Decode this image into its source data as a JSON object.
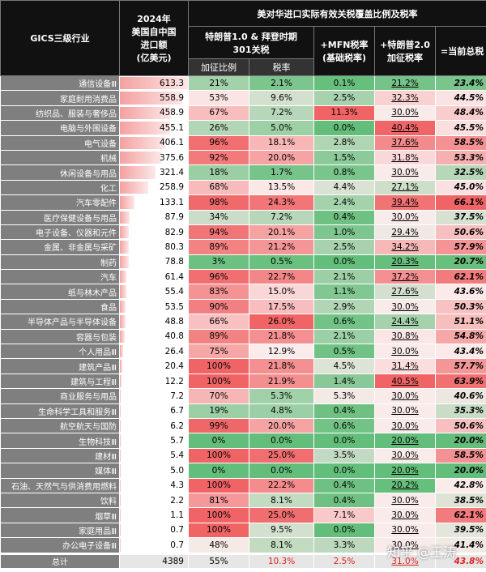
{
  "header": {
    "industry": "GICS三级行业",
    "imports": "2024年\n美国自中国\n进口额\n(亿美元)",
    "group": "美对华进口实际有效关税覆盖比例及税率",
    "sub_301": "特朗普1.0 & 拜登时期\n301关税",
    "ratio": "加征比例",
    "rate": "税率",
    "mfn": "+MFN税率\n(基础税率)",
    "t2": "+特朗普2.0\n加征税率",
    "total": "=当前总税"
  },
  "table": {
    "rows": [
      [
        "通信设备Ⅲ",
        "613.3",
        "21%",
        "2.1%",
        "0.1%",
        "21.2%",
        "23.4%"
      ],
      [
        "家庭耐用消费品",
        "558.9",
        "53%",
        "9.6%",
        "2.5%",
        "32.3%",
        "44.5%"
      ],
      [
        "纺织品、服装与奢侈品",
        "458.9",
        "67%",
        "7.2%",
        "11.3%",
        "30.0%",
        "48.4%"
      ],
      [
        "电脑与外围设备",
        "455.1",
        "26%",
        "5.0%",
        "0.0%",
        "40.4%",
        "45.5%"
      ],
      [
        "电气设备",
        "406.1",
        "96%",
        "18.1%",
        "2.8%",
        "37.6%",
        "58.5%"
      ],
      [
        "机械",
        "375.6",
        "92%",
        "20.0%",
        "1.5%",
        "31.8%",
        "53.3%"
      ],
      [
        "休闲设备与用品",
        "321.4",
        "18%",
        "1.7%",
        "0.8%",
        "30.0%",
        "32.5%"
      ],
      [
        "化工",
        "258.9",
        "68%",
        "13.5%",
        "4.4%",
        "27.1%",
        "45.0%"
      ],
      [
        "汽车零配件",
        "133.1",
        "98%",
        "24.3%",
        "2.4%",
        "39.4%",
        "66.1%"
      ],
      [
        "医疗保健设备与用品",
        "87.9",
        "34%",
        "7.2%",
        "0.4%",
        "30.0%",
        "37.5%"
      ],
      [
        "电子设备、仪器和元件",
        "82.9",
        "94%",
        "20.1%",
        "1.0%",
        "29.4%",
        "50.6%"
      ],
      [
        "金属、非金属与采矿",
        "80.3",
        "89%",
        "21.2%",
        "2.5%",
        "34.2%",
        "57.9%"
      ],
      [
        "制药",
        "78.8",
        "3%",
        "0.5%",
        "0.0%",
        "20.3%",
        "20.7%"
      ],
      [
        "汽车",
        "61.4",
        "96%",
        "22.7%",
        "2.1%",
        "37.2%",
        "62.1%"
      ],
      [
        "纸与林木产品",
        "55.4",
        "83%",
        "15.0%",
        "1.1%",
        "27.6%",
        "43.6%"
      ],
      [
        "食品",
        "53.5",
        "90%",
        "17.5%",
        "2.9%",
        "30.0%",
        "50.3%"
      ],
      [
        "半导体产品与半导体设备",
        "48.8",
        "66%",
        "26.0%",
        "0.6%",
        "24.4%",
        "51.1%"
      ],
      [
        "容器与包装",
        "40.8",
        "89%",
        "21.8%",
        "2.1%",
        "30.8%",
        "54.8%"
      ],
      [
        "个人用品Ⅲ",
        "26.4",
        "75%",
        "12.9%",
        "0.5%",
        "30.0%",
        "43.4%"
      ],
      [
        "建筑产品Ⅲ",
        "20.4",
        "100%",
        "21.8%",
        "4.5%",
        "31.4%",
        "57.7%"
      ],
      [
        "建筑与工程Ⅲ",
        "12.2",
        "100%",
        "21.9%",
        "1.4%",
        "40.5%",
        "63.9%"
      ],
      [
        "商业服务与用品",
        "7.2",
        "70%",
        "5.3%",
        "5.3%",
        "30.0%",
        "40.6%"
      ],
      [
        "生命科学工具和服务Ⅲ",
        "6.7",
        "19%",
        "4.8%",
        "0.4%",
        "30.0%",
        "35.3%"
      ],
      [
        "航空航天与国防",
        "6.2",
        "99%",
        "20.0%",
        "0.6%",
        "30.0%",
        "50.6%"
      ],
      [
        "生物科技Ⅲ",
        "5.7",
        "0%",
        "0.0%",
        "0.0%",
        "20.0%",
        "20.0%"
      ],
      [
        "建材Ⅲ",
        "5.4",
        "100%",
        "25.0%",
        "3.5%",
        "30.0%",
        "58.5%"
      ],
      [
        "媒体Ⅲ",
        "5.0",
        "0%",
        "0.0%",
        "0.0%",
        "20.0%",
        "20.0%"
      ],
      [
        "石油、天然气与供消费用燃料",
        "4.3",
        "100%",
        "22.2%",
        "0.4%",
        "20.2%",
        "42.8%"
      ],
      [
        "饮料",
        "2.2",
        "81%",
        "8.1%",
        "0.4%",
        "30.0%",
        "38.5%"
      ],
      [
        "烟草Ⅲ",
        "1.1",
        "100%",
        "25.0%",
        "7.1%",
        "30.0%",
        "62.1%"
      ],
      [
        "家庭用品Ⅲ",
        "0.7",
        "100%",
        "9.5%",
        "0.0%",
        "30.0%",
        "39.5%"
      ],
      [
        "办公电子设备Ⅲ",
        "0.7",
        "48%",
        "8.1%",
        "3.3%",
        "30.0%",
        "41.4%"
      ]
    ],
    "total": [
      "总计",
      "4389",
      "55%",
      "10.3%",
      "2.5%",
      "31.0%",
      "43.8%"
    ]
  },
  "watermark": "知乎 @王涛"
}
